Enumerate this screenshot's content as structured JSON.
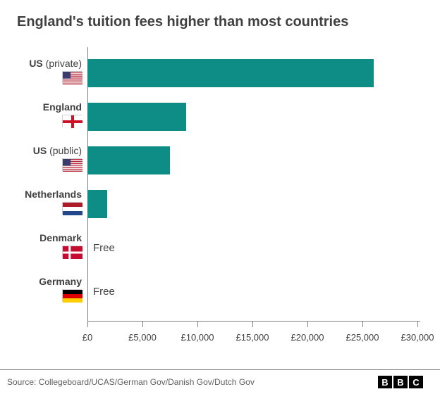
{
  "chart": {
    "title": "England's tuition fees higher than most countries",
    "type": "bar-horizontal",
    "bar_color": "#0e8d86",
    "background_color": "#ffffff",
    "axis_color": "#808080",
    "text_color": "#404040",
    "title_fontsize": 20,
    "label_fontsize": 14,
    "tick_fontsize": 13,
    "x_axis": {
      "min": 0,
      "max": 30000,
      "tick_step": 5000,
      "tick_labels": [
        "£0",
        "£5,000",
        "£10,000",
        "£15,000",
        "£20,000",
        "£25,000",
        "£30,000"
      ]
    },
    "rows": [
      {
        "label_bold": "US",
        "label_light": " (private)",
        "flag": "us",
        "value": 26000,
        "free_text": null
      },
      {
        "label_bold": "England",
        "label_light": "",
        "flag": "england",
        "value": 9000,
        "free_text": null
      },
      {
        "label_bold": "US",
        "label_light": " (public)",
        "flag": "us",
        "value": 7500,
        "free_text": null
      },
      {
        "label_bold": "Netherlands",
        "label_light": "",
        "flag": "netherlands",
        "value": 1800,
        "free_text": null
      },
      {
        "label_bold": "Denmark",
        "label_light": "",
        "flag": "denmark",
        "value": 0,
        "free_text": "Free"
      },
      {
        "label_bold": "Germany",
        "label_light": "",
        "flag": "germany",
        "value": 0,
        "free_text": "Free"
      }
    ]
  },
  "footer": {
    "source": "Source: Collegeboard/UCAS/German Gov/Danish Gov/Dutch Gov",
    "logo_letters": [
      "B",
      "B",
      "C"
    ]
  },
  "flags": {
    "us": {
      "type": "us"
    },
    "england": {
      "type": "england"
    },
    "netherlands": {
      "type": "netherlands"
    },
    "denmark": {
      "type": "denmark"
    },
    "germany": {
      "type": "germany"
    }
  }
}
